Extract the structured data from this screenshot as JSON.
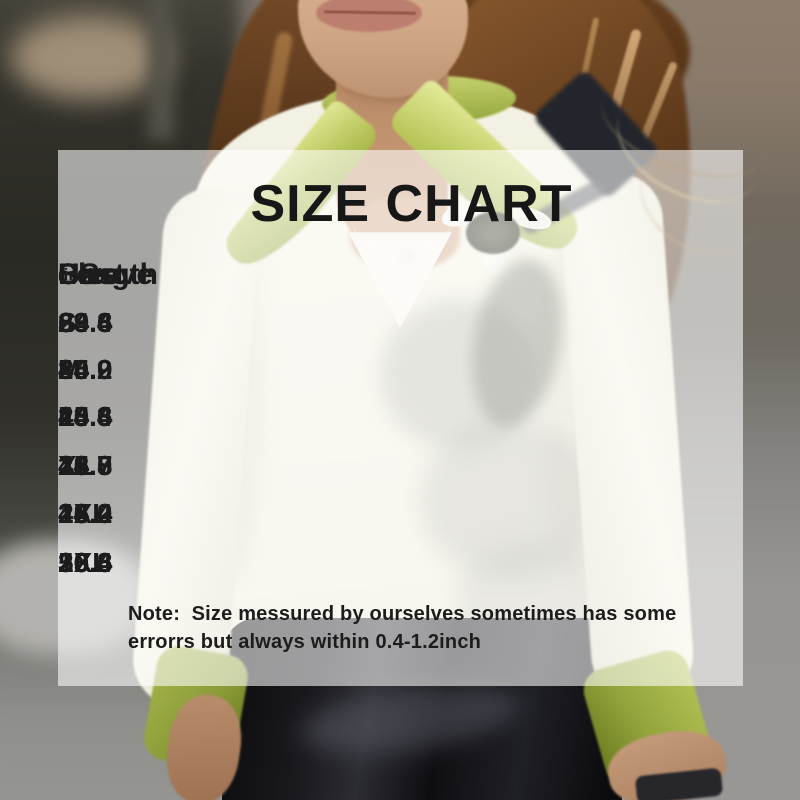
{
  "size_chart": {
    "title": "SIZE CHART",
    "headers": {
      "size": "Size",
      "size_unit": "(inch)",
      "us": "US",
      "bust": "Bust",
      "length": "Length",
      "sleeve": "Sleeve"
    },
    "rows": [
      {
        "size": "S",
        "us": "6",
        "bust": "39.4",
        "length": "24.8",
        "sleeve": "23.6"
      },
      {
        "size": "M",
        "us": "8",
        "bust": "40.9",
        "length": "25.2",
        "sleeve": "24.0"
      },
      {
        "size": "L",
        "us": "10",
        "bust": "43.3",
        "length": "25.6",
        "sleeve": "24.4"
      },
      {
        "size": "XL",
        "us": "12",
        "bust": "45.7",
        "length": "26.0",
        "sleeve": "24.8"
      },
      {
        "size": "2XL",
        "us": "14",
        "bust": "48.0",
        "length": "26.4",
        "sleeve": "25.2"
      },
      {
        "size": "3XL",
        "us": "16",
        "bust": "50.4",
        "length": "26.8",
        "sleeve": "25.6"
      }
    ],
    "note_line1": "Note:  Size messured by ourselves sometimes has some",
    "note_line2": "errorrs but always within 0.4-1.2inch"
  },
  "chart_data": {
    "type": "table",
    "title": "SIZE CHART",
    "unit": "inch",
    "columns": [
      "Size(inch)",
      "US",
      "Bust",
      "Length",
      "Sleeve"
    ],
    "rows": [
      [
        "S",
        "6",
        "39.4",
        "24.8",
        "23.6"
      ],
      [
        "M",
        "8",
        "40.9",
        "25.2",
        "24.0"
      ],
      [
        "L",
        "10",
        "43.3",
        "25.6",
        "24.4"
      ],
      [
        "XL",
        "12",
        "45.7",
        "26.0",
        "24.8"
      ],
      [
        "2XL",
        "14",
        "48.0",
        "26.4",
        "25.2"
      ],
      [
        "3XL",
        "16",
        "50.4",
        "26.8",
        "25.6"
      ]
    ],
    "note": "Note: Size messured by ourselves sometimes has some errorrs but always within 0.4-1.2inch"
  },
  "colors": {
    "panel_overlay": "rgba(255,255,255,0.58)",
    "text": "#1c1c1c",
    "blouse_ivory": "#f2f0e1",
    "collar_green": "#a6b648",
    "skirt_black": "#101014",
    "hair_brown": "#5d3a1e",
    "background_left": "#2e2d26",
    "background_right": "#8b7b6a"
  }
}
